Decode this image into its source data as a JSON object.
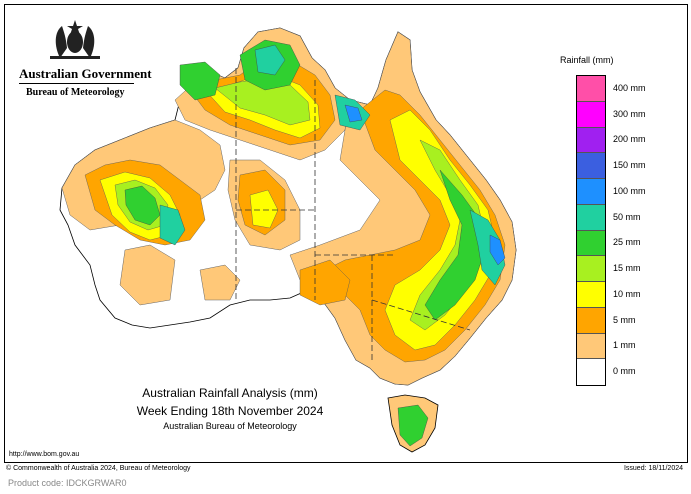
{
  "header": {
    "government": "Australian Government",
    "bureau": "Bureau of Meteorology"
  },
  "legend": {
    "title": "Rainfall (mm)",
    "items": [
      {
        "label": "400 mm",
        "color": "#ff4fa8"
      },
      {
        "label": "300 mm",
        "color": "#ff00ff"
      },
      {
        "label": "200 mm",
        "color": "#a020f0"
      },
      {
        "label": "150 mm",
        "color": "#3b5fe0"
      },
      {
        "label": "100 mm",
        "color": "#1e90ff"
      },
      {
        "label": "50 mm",
        "color": "#20d0a0"
      },
      {
        "label": "25 mm",
        "color": "#30d030"
      },
      {
        "label": "15 mm",
        "color": "#a8f020"
      },
      {
        "label": "10 mm",
        "color": "#ffff00"
      },
      {
        "label": "5 mm",
        "color": "#ffa500"
      },
      {
        "label": "1 mm",
        "color": "#ffc878"
      },
      {
        "label": "0 mm",
        "color": "#ffffff"
      }
    ]
  },
  "title": {
    "line1": "Australian Rainfall Analysis (mm)",
    "line2": "Week Ending 18th November 2024",
    "line3": "Australian Bureau of Meteorology"
  },
  "footer": {
    "url": "http://www.bom.gov.au",
    "copyright": "© Commonwealth of Australia 2024, Bureau of Meteorology",
    "issued": "Issued: 18/11/2024",
    "product_code": "Product code: IDCKGRWAR0"
  }
}
